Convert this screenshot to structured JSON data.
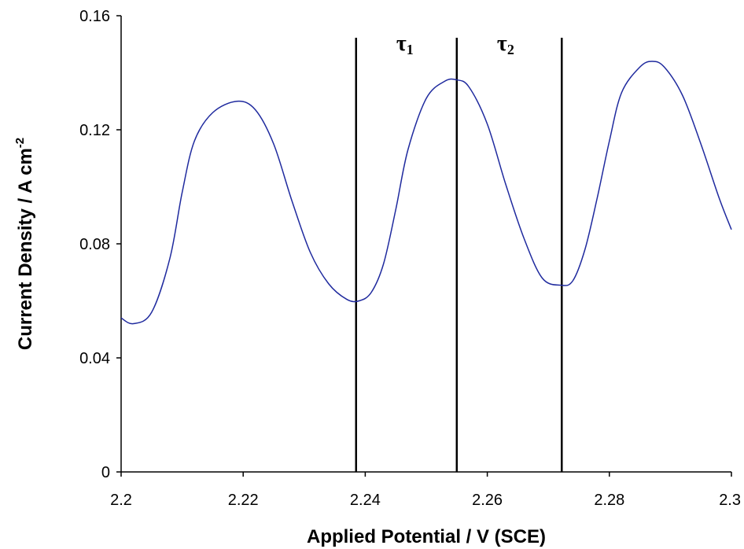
{
  "chart_data": {
    "type": "line",
    "title": "",
    "xlabel": "Applied Potential / V (SCE)",
    "ylabel": "Current Density / A cm",
    "ylabel_superscript": "-2",
    "xlim": [
      2.2,
      2.3
    ],
    "ylim": [
      0,
      0.16
    ],
    "x_ticks": [
      "2.2",
      "2.22",
      "2.24",
      "2.26",
      "2.28",
      "2.3"
    ],
    "y_ticks": [
      "0",
      "0.04",
      "0.08",
      "0.12",
      "0.16"
    ],
    "grid": false,
    "legend": "none",
    "line_color": "#1f2a9e",
    "series": [
      {
        "x": [
          2.2,
          2.202,
          2.205,
          2.208,
          2.21,
          2.212,
          2.215,
          2.219,
          2.222,
          2.225,
          2.228,
          2.231,
          2.234,
          2.237,
          2.239,
          2.241,
          2.243,
          2.245,
          2.247,
          2.25,
          2.253,
          2.255,
          2.257,
          2.26,
          2.263,
          2.266,
          2.269,
          2.272,
          2.274,
          2.276,
          2.278,
          2.28,
          2.282,
          2.285,
          2.287,
          2.289,
          2.292,
          2.295,
          2.298,
          2.3
        ],
        "y": [
          0.054,
          0.052,
          0.056,
          0.075,
          0.098,
          0.116,
          0.126,
          0.13,
          0.127,
          0.115,
          0.095,
          0.077,
          0.066,
          0.0605,
          0.06,
          0.063,
          0.073,
          0.092,
          0.113,
          0.131,
          0.137,
          0.1375,
          0.135,
          0.122,
          0.101,
          0.082,
          0.068,
          0.0655,
          0.067,
          0.078,
          0.096,
          0.116,
          0.133,
          0.142,
          0.144,
          0.142,
          0.132,
          0.115,
          0.096,
          0.085
        ]
      }
    ],
    "vlines": [
      2.2385,
      2.255,
      2.2722
    ],
    "annotations": [
      {
        "symbol": "τ",
        "subscript": "1",
        "x": 2.2465
      },
      {
        "symbol": "τ",
        "subscript": "2",
        "x": 2.263
      }
    ]
  }
}
